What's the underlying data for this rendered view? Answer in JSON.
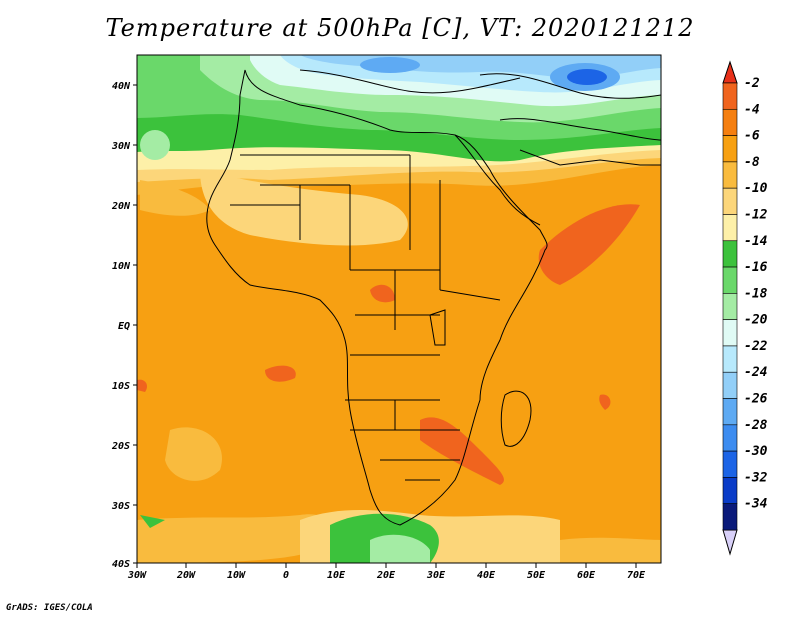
{
  "title": "Temperature at 500hPa [C], VT: 2020121212",
  "footer": "GrADS: IGES/COLA",
  "lon_labels": [
    "30W",
    "20W",
    "10W",
    "0",
    "10E",
    "20E",
    "30E",
    "40E",
    "50E",
    "60E",
    "70E"
  ],
  "lat_labels": [
    "40N",
    "30N",
    "20N",
    "10N",
    "EQ",
    "10S",
    "20S",
    "30S",
    "40S"
  ],
  "colorbar": {
    "labels": [
      "-2",
      "-4",
      "-6",
      "-8",
      "-10",
      "-12",
      "-14",
      "-16",
      "-18",
      "-20",
      "-22",
      "-24",
      "-26",
      "-28",
      "-30",
      "-32",
      "-34"
    ],
    "colors": [
      "#f0641e",
      "#f57f10",
      "#f7a012",
      "#f9bb3e",
      "#fcd67a",
      "#fdf0a8",
      "#3cc23c",
      "#6ad86a",
      "#a4eca4",
      "#e0fbf5",
      "#b7e9fc",
      "#92cff8",
      "#5eaaf3",
      "#3c8cf0",
      "#1c64e6",
      "#0a3cc8",
      "#0a1a7a"
    ],
    "top_color": "#e8301a",
    "bottom_color": "#d8d0f8"
  }
}
